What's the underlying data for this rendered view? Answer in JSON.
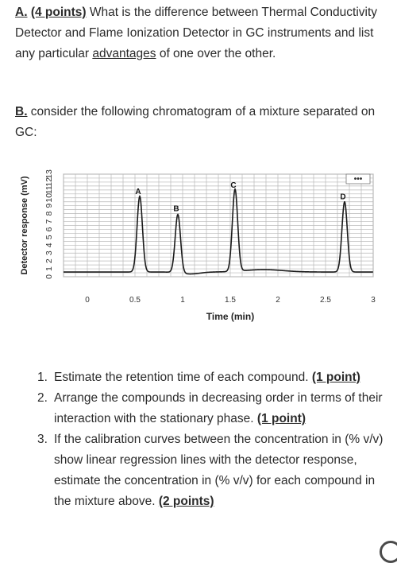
{
  "part_a": {
    "label": "A.",
    "points": "(4 points)",
    "text_before": " What is the difference between Thermal Conductivity Detector and Flame Ionization Detector in GC instruments and list any particular ",
    "advantages": "advantages",
    "text_after": " of one over the other."
  },
  "part_b": {
    "label": "B.",
    "text": " consider the following chromatogram of a mixture separated on GC:"
  },
  "chart_data": {
    "type": "line",
    "title": "",
    "xlabel": "Time (min)",
    "ylabel": "Detector response (mV)",
    "xlim": [
      -0.25,
      3.0
    ],
    "ylim": [
      0,
      13
    ],
    "x_ticks": [
      0,
      0.5,
      1,
      1.5,
      2,
      2.5,
      3
    ],
    "x_tick_labels": [
      "0",
      "0.5",
      "1",
      "1.5",
      "2",
      "2.5",
      "3"
    ],
    "y_ticks": [
      0,
      1,
      2,
      3,
      4,
      5,
      6,
      7,
      8,
      9,
      10,
      11,
      12,
      13
    ],
    "grid": true,
    "baseline": 0.6,
    "series": [
      {
        "color": "#1a1a1a",
        "peaks": [
          {
            "label": "A",
            "retention_time": 0.55,
            "height": 10.2
          },
          {
            "label": "B",
            "retention_time": 0.95,
            "height": 8.0
          },
          {
            "label": "C",
            "retention_time": 1.55,
            "height": 11.0
          },
          {
            "label": "D",
            "retention_time": 2.7,
            "height": 9.5
          }
        ]
      }
    ],
    "peak_labels": [
      "A",
      "B",
      "C",
      "D"
    ],
    "legend_symbol": "•••",
    "legend_placement": "top-right"
  },
  "questions": [
    {
      "number": "1.",
      "text": "Estimate the retention time of each compound. ",
      "points": "(1 point)"
    },
    {
      "number": "2.",
      "text": "Arrange the compounds in decreasing order in terms of their interaction with the stationary phase. ",
      "points": "(1 point)"
    },
    {
      "number": "3.",
      "text": "If the calibration curves between the concentration in (% v/v) show linear regression lines with the detector response, estimate the concentration in (% v/v) for each compound in the mixture above. ",
      "points": "(2 points)"
    }
  ]
}
